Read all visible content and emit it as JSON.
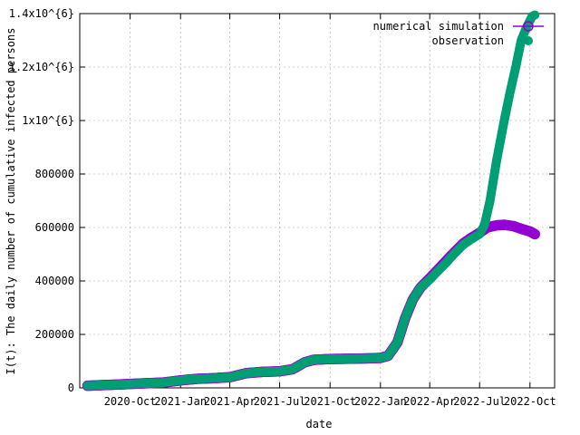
{
  "chart_data": {
    "type": "scatter",
    "title": "",
    "xlabel": "date",
    "ylabel": "I(t): The daily number of cumulative infected persons",
    "x_ticks": [
      "2020-Oct",
      "2021-Jan",
      "2021-Apr",
      "2021-Jul",
      "2021-Oct",
      "2022-Jan",
      "2022-Apr",
      "2022-Jul",
      "2022-Oct"
    ],
    "x_tick_dates": [
      "2020-10-01",
      "2021-01-01",
      "2021-04-01",
      "2021-07-01",
      "2021-10-01",
      "2022-01-01",
      "2022-04-01",
      "2022-07-01",
      "2022-10-01"
    ],
    "xlim": [
      "2020-07-01",
      "2022-11-15"
    ],
    "y_ticks": [
      0,
      200000,
      400000,
      600000,
      800000,
      1000000,
      1200000,
      1400000
    ],
    "y_tick_labels": [
      "0",
      "200000",
      "400000",
      "600000",
      "800000",
      "1x10^{6}",
      "1.2x10^{6}",
      "1.4x10^{6}"
    ],
    "ylim": [
      0,
      1400000
    ],
    "grid": true,
    "legend_position": "top-right",
    "colors": {
      "simulation": "#9400d3",
      "observation": "#009e73"
    },
    "series": [
      {
        "name": "numerical simulation",
        "marker": "open-circle",
        "points": [
          [
            "2020-07-15",
            8000
          ],
          [
            "2020-09-01",
            12000
          ],
          [
            "2020-10-15",
            16000
          ],
          [
            "2020-12-01",
            20000
          ],
          [
            "2021-01-01",
            28000
          ],
          [
            "2021-02-01",
            34000
          ],
          [
            "2021-03-01",
            36000
          ],
          [
            "2021-04-01",
            40000
          ],
          [
            "2021-05-01",
            55000
          ],
          [
            "2021-06-01",
            60000
          ],
          [
            "2021-07-01",
            62000
          ],
          [
            "2021-07-25",
            70000
          ],
          [
            "2021-08-15",
            95000
          ],
          [
            "2021-09-01",
            105000
          ],
          [
            "2021-10-01",
            108000
          ],
          [
            "2021-11-01",
            109000
          ],
          [
            "2021-12-01",
            110000
          ],
          [
            "2022-01-01",
            112000
          ],
          [
            "2022-01-15",
            120000
          ],
          [
            "2022-02-01",
            170000
          ],
          [
            "2022-02-15",
            260000
          ],
          [
            "2022-03-01",
            330000
          ],
          [
            "2022-03-15",
            375000
          ],
          [
            "2022-04-01",
            410000
          ],
          [
            "2022-04-15",
            440000
          ],
          [
            "2022-05-01",
            475000
          ],
          [
            "2022-05-15",
            505000
          ],
          [
            "2022-06-01",
            540000
          ],
          [
            "2022-06-15",
            560000
          ],
          [
            "2022-07-01",
            580000
          ],
          [
            "2022-07-15",
            600000
          ],
          [
            "2022-08-01",
            608000
          ],
          [
            "2022-08-15",
            610000
          ],
          [
            "2022-09-01",
            605000
          ],
          [
            "2022-09-15",
            595000
          ],
          [
            "2022-10-01",
            585000
          ],
          [
            "2022-10-10",
            575000
          ]
        ]
      },
      {
        "name": "observation",
        "marker": "filled-circle",
        "points": [
          [
            "2020-07-15",
            8000
          ],
          [
            "2020-09-01",
            12000
          ],
          [
            "2020-10-15",
            16000
          ],
          [
            "2020-12-01",
            20000
          ],
          [
            "2021-01-01",
            28000
          ],
          [
            "2021-02-01",
            34000
          ],
          [
            "2021-03-01",
            36000
          ],
          [
            "2021-04-01",
            40000
          ],
          [
            "2021-05-01",
            55000
          ],
          [
            "2021-06-01",
            60000
          ],
          [
            "2021-07-01",
            62000
          ],
          [
            "2021-07-25",
            70000
          ],
          [
            "2021-08-15",
            95000
          ],
          [
            "2021-09-01",
            105000
          ],
          [
            "2021-10-01",
            108000
          ],
          [
            "2021-11-01",
            109000
          ],
          [
            "2021-12-01",
            110000
          ],
          [
            "2022-01-01",
            112000
          ],
          [
            "2022-01-15",
            120000
          ],
          [
            "2022-02-01",
            170000
          ],
          [
            "2022-02-15",
            260000
          ],
          [
            "2022-03-01",
            330000
          ],
          [
            "2022-03-15",
            375000
          ],
          [
            "2022-04-01",
            405000
          ],
          [
            "2022-04-15",
            435000
          ],
          [
            "2022-05-01",
            468000
          ],
          [
            "2022-05-15",
            500000
          ],
          [
            "2022-06-01",
            535000
          ],
          [
            "2022-06-15",
            555000
          ],
          [
            "2022-07-01",
            575000
          ],
          [
            "2022-07-10",
            610000
          ],
          [
            "2022-07-20",
            700000
          ],
          [
            "2022-08-01",
            850000
          ],
          [
            "2022-08-15",
            1000000
          ],
          [
            "2022-08-25",
            1100000
          ],
          [
            "2022-09-05",
            1200000
          ],
          [
            "2022-09-15",
            1300000
          ],
          [
            "2022-09-25",
            1350000
          ],
          [
            "2022-10-05",
            1390000
          ],
          [
            "2022-10-10",
            1395000
          ]
        ]
      }
    ]
  }
}
